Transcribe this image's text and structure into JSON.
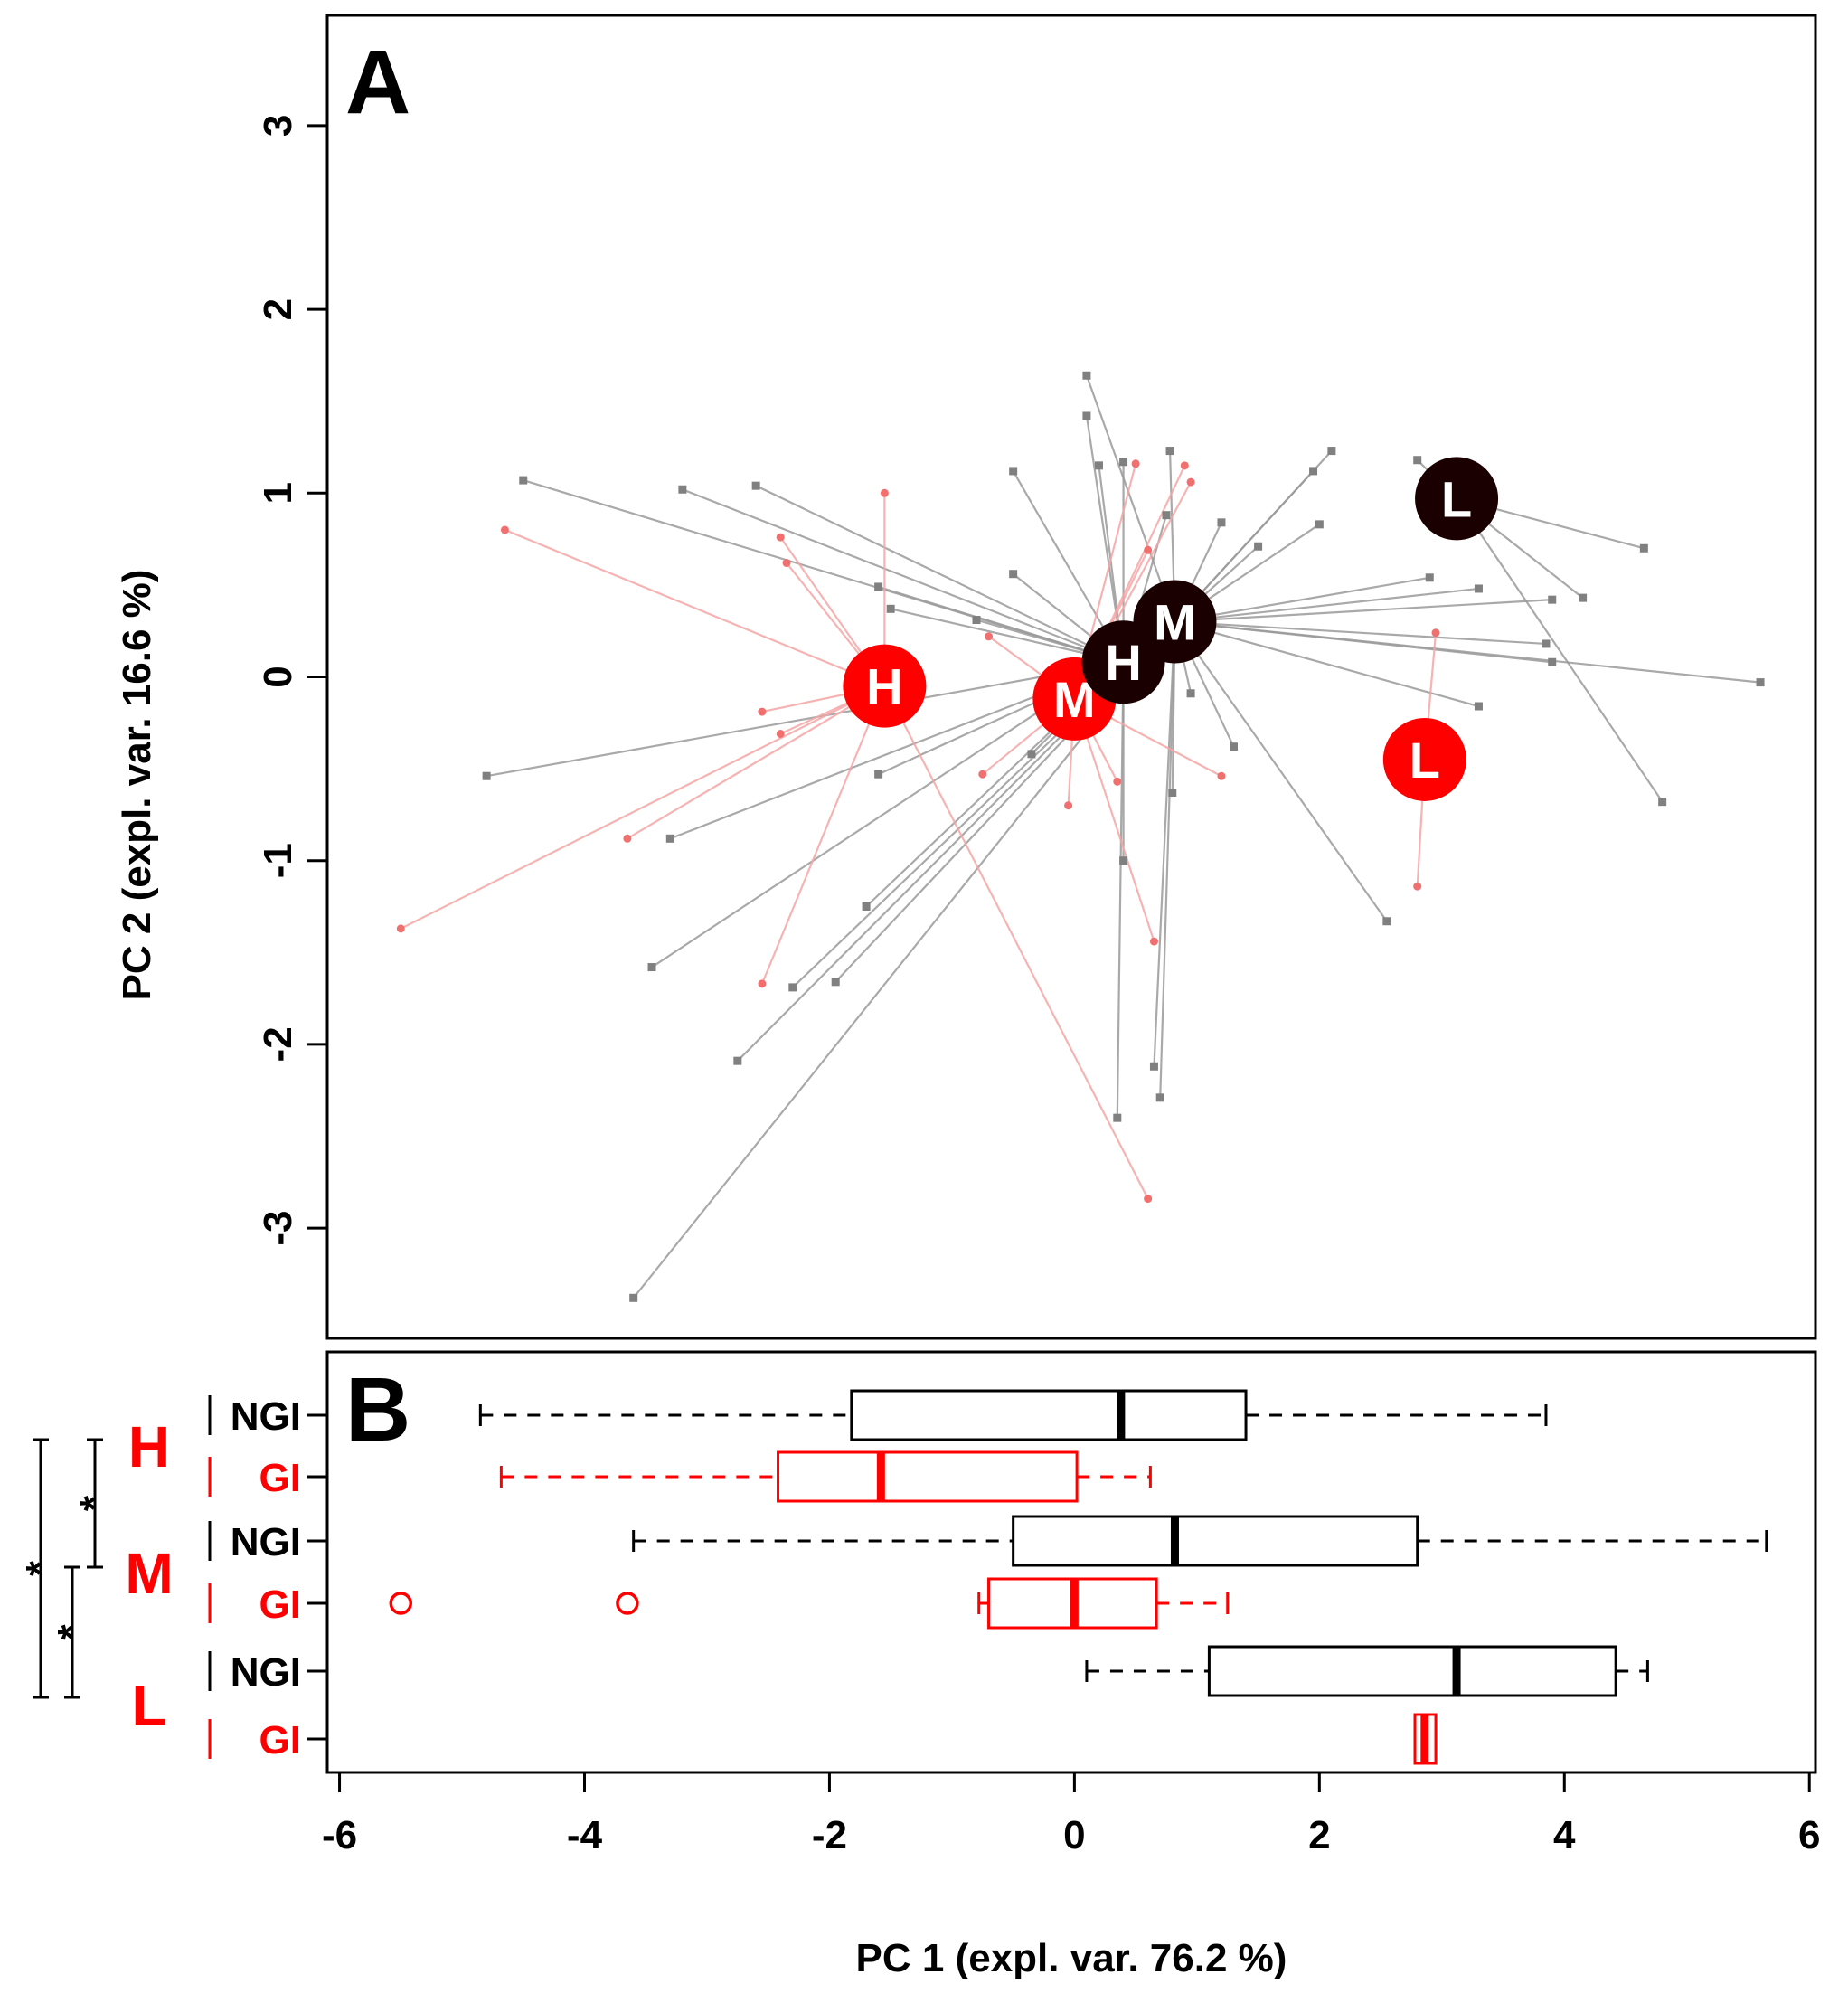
{
  "colors": {
    "gi": "#ff0000",
    "ngi": "#1a0000",
    "gi_light": "#f4a6a6",
    "ngi_light": "#9a9a9a"
  },
  "chart_data": [
    {
      "panel": "A",
      "type": "scatter",
      "xlim": [
        -6.1,
        6.05
      ],
      "ylim": [
        -3.6,
        3.6
      ],
      "yticks": [
        -3,
        -2,
        -1,
        0,
        1,
        2,
        3
      ],
      "ylabel": "PC 2 (expl. var. 16.6 %)",
      "series": [
        {
          "name": "NGI",
          "group_label": "H",
          "centroid": [
            0.4,
            0.08
          ],
          "points": [
            [
              -4.5,
              1.07
            ],
            [
              -3.2,
              1.02
            ],
            [
              -2.6,
              1.04
            ],
            [
              -1.6,
              0.49
            ],
            [
              -1.5,
              0.37
            ],
            [
              -0.8,
              0.31
            ],
            [
              -0.5,
              0.56
            ],
            [
              -4.8,
              -0.54
            ],
            [
              -3.3,
              -0.88
            ],
            [
              -1.6,
              -0.53
            ],
            [
              -1.7,
              -1.25
            ],
            [
              -0.35,
              -0.42
            ],
            [
              0.4,
              -1.0
            ],
            [
              0.35,
              -2.4
            ],
            [
              0.1,
              1.42
            ],
            [
              0.2,
              1.15
            ],
            [
              0.4,
              1.17
            ],
            [
              -0.5,
              1.12
            ],
            [
              0.75,
              0.88
            ]
          ]
        },
        {
          "name": "NGI",
          "group_label": "M",
          "centroid": [
            0.82,
            0.3
          ],
          "points": [
            [
              0.1,
              1.64
            ],
            [
              0.78,
              1.23
            ],
            [
              1.2,
              0.84
            ],
            [
              1.5,
              0.71
            ],
            [
              1.95,
              1.12
            ],
            [
              2.1,
              1.23
            ],
            [
              2.0,
              0.83
            ],
            [
              2.9,
              0.54
            ],
            [
              3.3,
              0.48
            ],
            [
              3.9,
              0.42
            ],
            [
              3.85,
              0.18
            ],
            [
              3.9,
              0.08
            ],
            [
              5.6,
              -0.03
            ],
            [
              3.3,
              -0.16
            ],
            [
              1.3,
              -0.38
            ],
            [
              0.95,
              -0.09
            ],
            [
              0.8,
              -0.63
            ],
            [
              2.55,
              -1.33
            ],
            [
              -3.45,
              -1.58
            ],
            [
              -2.3,
              -1.69
            ],
            [
              -1.95,
              -1.66
            ],
            [
              -2.75,
              -2.09
            ],
            [
              -3.6,
              -3.38
            ],
            [
              0.65,
              -2.12
            ],
            [
              0.7,
              -2.29
            ]
          ]
        },
        {
          "name": "NGI",
          "group_label": "L",
          "centroid": [
            3.12,
            0.97
          ],
          "points": [
            [
              2.8,
              1.18
            ],
            [
              4.65,
              0.7
            ],
            [
              4.15,
              0.43
            ],
            [
              4.8,
              -0.68
            ]
          ]
        },
        {
          "name": "GI",
          "group_label": "H",
          "centroid": [
            -1.55,
            -0.05
          ],
          "points": [
            [
              -4.65,
              0.8
            ],
            [
              -1.55,
              1.0
            ],
            [
              -2.4,
              0.76
            ],
            [
              -2.35,
              0.62
            ],
            [
              -2.55,
              -0.19
            ],
            [
              -2.4,
              -0.31
            ],
            [
              -3.65,
              -0.88
            ],
            [
              -5.5,
              -1.37
            ],
            [
              -2.55,
              -1.67
            ],
            [
              0.6,
              -2.84
            ]
          ]
        },
        {
          "name": "GI",
          "group_label": "M",
          "centroid": [
            0.0,
            -0.12
          ],
          "points": [
            [
              0.5,
              1.16
            ],
            [
              0.9,
              1.15
            ],
            [
              0.95,
              1.06
            ],
            [
              0.6,
              0.69
            ],
            [
              -0.7,
              0.22
            ],
            [
              -0.75,
              -0.53
            ],
            [
              -0.05,
              -0.7
            ],
            [
              0.35,
              -0.57
            ],
            [
              1.2,
              -0.54
            ],
            [
              0.65,
              -1.44
            ]
          ]
        },
        {
          "name": "GI",
          "group_label": "L",
          "centroid": [
            2.86,
            -0.45
          ],
          "points": [
            [
              2.95,
              0.24
            ],
            [
              2.8,
              -1.14
            ]
          ]
        }
      ]
    },
    {
      "panel": "B",
      "type": "box",
      "xlim": [
        -6.1,
        6.05
      ],
      "xticks": [
        -6,
        -4,
        -2,
        0,
        2,
        4,
        6
      ],
      "xlabel": "PC 1 (expl. var. 76.2 %)",
      "boxes": [
        {
          "group": "H",
          "name": "NGI",
          "whisker_low": -4.85,
          "q1": -1.82,
          "median": 0.38,
          "q3": 1.4,
          "whisker_high": 3.85,
          "outliers": []
        },
        {
          "group": "H",
          "name": "GI",
          "whisker_low": -4.68,
          "q1": -2.42,
          "median": -1.58,
          "q3": 0.02,
          "whisker_high": 0.62,
          "outliers": []
        },
        {
          "group": "M",
          "name": "NGI",
          "whisker_low": -3.6,
          "q1": -0.5,
          "median": 0.82,
          "q3": 2.8,
          "whisker_high": 5.65,
          "outliers": []
        },
        {
          "group": "M",
          "name": "GI",
          "whisker_low": -0.78,
          "q1": -0.7,
          "median": 0.0,
          "q3": 0.67,
          "whisker_high": 1.25,
          "outliers": [
            -5.5,
            -3.65
          ]
        },
        {
          "group": "L",
          "name": "NGI",
          "whisker_low": 0.1,
          "q1": 1.1,
          "median": 3.12,
          "q3": 4.42,
          "whisker_high": 4.68,
          "outliers": []
        },
        {
          "group": "L",
          "name": "GI",
          "whisker_low": 2.78,
          "q1": 2.78,
          "median": 2.86,
          "q3": 2.95,
          "whisker_high": 2.95,
          "outliers": []
        }
      ],
      "significance": [
        {
          "between": [
            "H",
            "M"
          ],
          "label": "*"
        },
        {
          "between": [
            "M",
            "L"
          ],
          "label": "*"
        },
        {
          "between": [
            "H",
            "L"
          ],
          "label": "*"
        }
      ]
    }
  ]
}
